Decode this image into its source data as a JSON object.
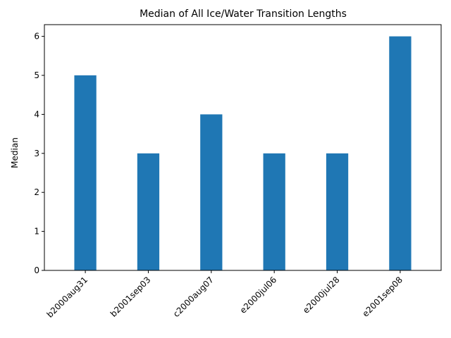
{
  "chart_data": {
    "type": "bar",
    "title": "Median of All Ice/Water Transition Lengths",
    "xlabel": "",
    "ylabel": "Median",
    "categories": [
      "b2000aug31",
      "b2001sep03",
      "c2000aug07",
      "e2000jul06",
      "e2000jul28",
      "e2001sep08"
    ],
    "values": [
      5,
      3,
      4,
      3,
      3,
      6
    ],
    "ylim": [
      0,
      6.3
    ],
    "yticks": [
      0,
      1,
      2,
      3,
      4,
      5,
      6
    ],
    "bar_color": "#1f77b4",
    "grid": false,
    "legend": "none"
  }
}
